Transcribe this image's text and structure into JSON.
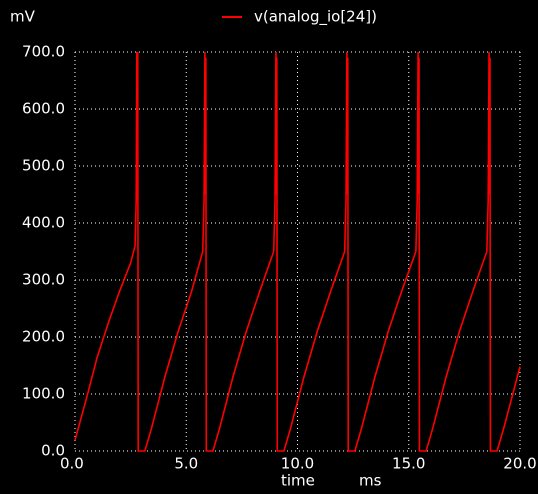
{
  "chart_data": {
    "type": "line",
    "yunit": "mV",
    "xlabel": "time",
    "xunit": "ms",
    "x": [
      0,
      0.5,
      1.0,
      1.5,
      2.0,
      2.5,
      2.7,
      2.75,
      2.78,
      2.8,
      2.82,
      2.84,
      3.14,
      3.44,
      4.04,
      4.64,
      5.24,
      5.74,
      5.8,
      5.84,
      5.86,
      5.88,
      5.9,
      6.2,
      6.5,
      7.1,
      7.7,
      8.3,
      8.93,
      8.99,
      9.03,
      9.05,
      9.07,
      9.09,
      9.39,
      9.69,
      10.29,
      10.89,
      11.49,
      12.12,
      12.18,
      12.22,
      12.24,
      12.26,
      12.28,
      12.58,
      12.88,
      13.48,
      14.08,
      14.68,
      15.32,
      15.38,
      15.42,
      15.44,
      15.46,
      15.48,
      15.78,
      16.08,
      16.68,
      17.28,
      17.88,
      18.51,
      18.57,
      18.61,
      18.63,
      18.65,
      18.67,
      18.97,
      19.27,
      20.0
    ],
    "series": [
      {
        "name": "v(analog_io[24])",
        "color": "#ff0000",
        "values": [
          19,
          90,
          165,
          225,
          280,
          330,
          360,
          440,
          700,
          440,
          700,
          0,
          0,
          40,
          130,
          210,
          280,
          350,
          440,
          700,
          450,
          690,
          0,
          0,
          40,
          130,
          210,
          280,
          350,
          440,
          700,
          450,
          690,
          0,
          0,
          40,
          130,
          210,
          280,
          350,
          440,
          700,
          450,
          690,
          0,
          0,
          40,
          130,
          210,
          280,
          350,
          440,
          700,
          450,
          690,
          0,
          0,
          40,
          130,
          210,
          280,
          350,
          440,
          700,
          450,
          690,
          0,
          0,
          40,
          148
        ]
      }
    ],
    "xlim": [
      0,
      20
    ],
    "ylim": [
      0,
      700
    ],
    "xticks": [
      {
        "value": 0,
        "label": "0.0"
      },
      {
        "value": 5,
        "label": "5.0"
      },
      {
        "value": 10,
        "label": "10.0"
      },
      {
        "value": 15,
        "label": "15.0"
      },
      {
        "value": 20,
        "label": "20.0"
      }
    ],
    "yticks": [
      {
        "value": 0,
        "label": "0.0"
      },
      {
        "value": 100,
        "label": "100.0"
      },
      {
        "value": 200,
        "label": "200.0"
      },
      {
        "value": 300,
        "label": "300.0"
      },
      {
        "value": 400,
        "label": "400.0"
      },
      {
        "value": 500,
        "label": "500.0"
      },
      {
        "value": 600,
        "label": "600.0"
      },
      {
        "value": 700,
        "label": "700.0"
      }
    ],
    "grid": true
  }
}
